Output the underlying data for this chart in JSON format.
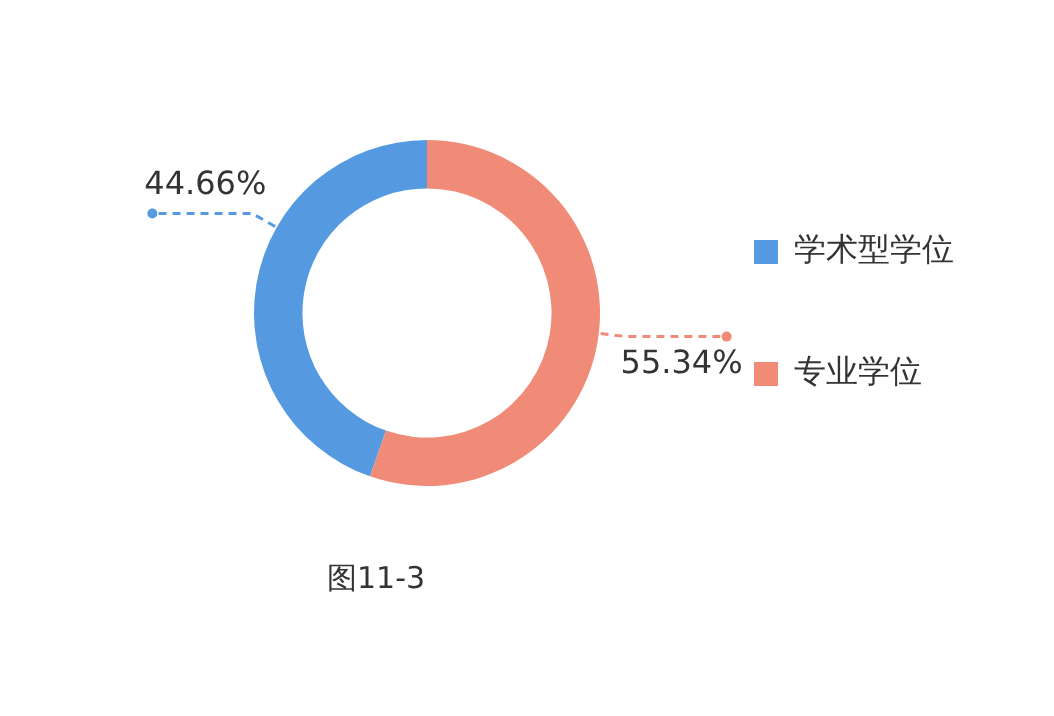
{
  "chart_data": {
    "type": "donut",
    "categories": [
      "学术型学位",
      "专业学位"
    ],
    "values": [
      44.66,
      55.34
    ],
    "colors": [
      "#5599e0",
      "#f08b78"
    ],
    "value_labels": [
      "44.66%",
      "55.34%"
    ],
    "legend": "right",
    "annotations": [
      "图11-3"
    ]
  }
}
